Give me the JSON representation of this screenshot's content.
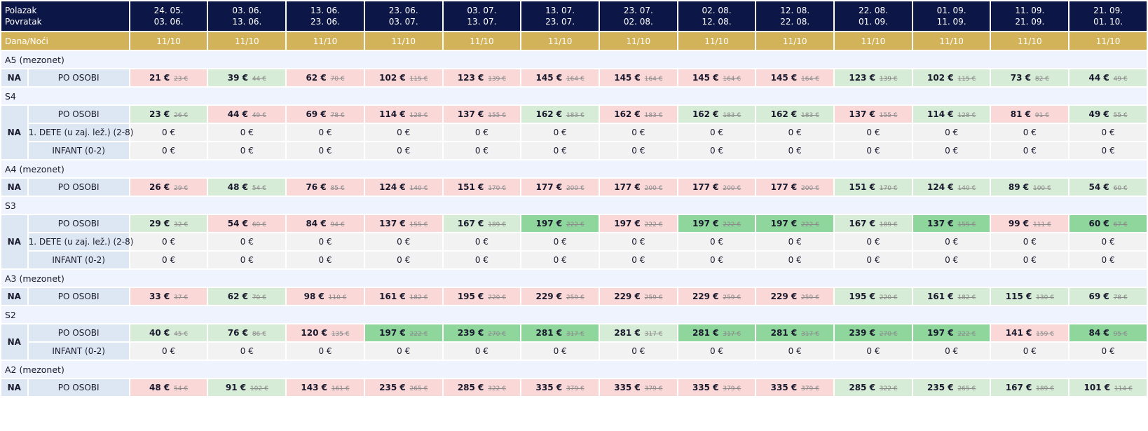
{
  "header": {
    "label_departure": "Polazak",
    "label_return": "Povratak",
    "nights_label": "Dana/Noći"
  },
  "periods": [
    {
      "dep": "24. 05.",
      "ret": "03. 06.",
      "nights": "11/10"
    },
    {
      "dep": "03. 06.",
      "ret": "13. 06.",
      "nights": "11/10"
    },
    {
      "dep": "13. 06.",
      "ret": "23. 06.",
      "nights": "11/10"
    },
    {
      "dep": "23. 06.",
      "ret": "03. 07.",
      "nights": "11/10"
    },
    {
      "dep": "03. 07.",
      "ret": "13. 07.",
      "nights": "11/10"
    },
    {
      "dep": "13. 07.",
      "ret": "23. 07.",
      "nights": "11/10"
    },
    {
      "dep": "23. 07.",
      "ret": "02. 08.",
      "nights": "11/10"
    },
    {
      "dep": "02. 08.",
      "ret": "12. 08.",
      "nights": "11/10"
    },
    {
      "dep": "12. 08.",
      "ret": "22. 08.",
      "nights": "11/10"
    },
    {
      "dep": "22. 08.",
      "ret": "01. 09.",
      "nights": "11/10"
    },
    {
      "dep": "01. 09.",
      "ret": "11. 09.",
      "nights": "11/10"
    },
    {
      "dep": "11. 09.",
      "ret": "21. 09.",
      "nights": "11/10"
    },
    {
      "dep": "21. 09.",
      "ret": "01. 10.",
      "nights": "11/10"
    }
  ],
  "colors": {
    "header_bg": "#0d1747",
    "nights_bg": "#d3b35a",
    "section_bg": "#eef3fd",
    "label_bg": "#dde6f3",
    "price_red": "#fbd8d8",
    "price_light_green": "#d7ecd6",
    "price_dark_green": "#8fd69d",
    "zero_gray": "#f2f2f2"
  },
  "sections": [
    {
      "title": "A5 (mezonet)",
      "board": "NA",
      "rows": [
        {
          "type": "PO OSOBI",
          "cells": [
            {
              "p": "21 €",
              "o": "23 €",
              "c": "red"
            },
            {
              "p": "39 €",
              "o": "44 €",
              "c": "lg"
            },
            {
              "p": "62 €",
              "o": "70 €",
              "c": "red"
            },
            {
              "p": "102 €",
              "o": "115 €",
              "c": "red"
            },
            {
              "p": "123 €",
              "o": "139 €",
              "c": "red"
            },
            {
              "p": "145 €",
              "o": "164 €",
              "c": "red"
            },
            {
              "p": "145 €",
              "o": "164 €",
              "c": "red"
            },
            {
              "p": "145 €",
              "o": "164 €",
              "c": "red"
            },
            {
              "p": "145 €",
              "o": "164 €",
              "c": "red"
            },
            {
              "p": "123 €",
              "o": "139 €",
              "c": "lg"
            },
            {
              "p": "102 €",
              "o": "115 €",
              "c": "lg"
            },
            {
              "p": "73 €",
              "o": "82 €",
              "c": "lg"
            },
            {
              "p": "44 €",
              "o": "49 €",
              "c": "lg"
            }
          ]
        }
      ]
    },
    {
      "title": "S4",
      "board": "NA",
      "rows": [
        {
          "type": "PO OSOBI",
          "cells": [
            {
              "p": "23 €",
              "o": "26 €",
              "c": "lg"
            },
            {
              "p": "44 €",
              "o": "49 €",
              "c": "red"
            },
            {
              "p": "69 €",
              "o": "78 €",
              "c": "red"
            },
            {
              "p": "114 €",
              "o": "128 €",
              "c": "red"
            },
            {
              "p": "137 €",
              "o": "155 €",
              "c": "red"
            },
            {
              "p": "162 €",
              "o": "183 €",
              "c": "lg"
            },
            {
              "p": "162 €",
              "o": "183 €",
              "c": "red"
            },
            {
              "p": "162 €",
              "o": "183 €",
              "c": "lg"
            },
            {
              "p": "162 €",
              "o": "183 €",
              "c": "lg"
            },
            {
              "p": "137 €",
              "o": "155 €",
              "c": "red"
            },
            {
              "p": "114 €",
              "o": "128 €",
              "c": "lg"
            },
            {
              "p": "81 €",
              "o": "91 €",
              "c": "red"
            },
            {
              "p": "49 €",
              "o": "55 €",
              "c": "lg"
            }
          ]
        },
        {
          "type": "1. DETE (u zaj. lež.) (2-8)",
          "zero": "0 €"
        },
        {
          "type": "INFANT (0-2)",
          "zero": "0 €"
        }
      ]
    },
    {
      "title": "A4 (mezonet)",
      "board": "NA",
      "rows": [
        {
          "type": "PO OSOBI",
          "cells": [
            {
              "p": "26 €",
              "o": "29 €",
              "c": "red"
            },
            {
              "p": "48 €",
              "o": "54 €",
              "c": "lg"
            },
            {
              "p": "76 €",
              "o": "85 €",
              "c": "red"
            },
            {
              "p": "124 €",
              "o": "140 €",
              "c": "red"
            },
            {
              "p": "151 €",
              "o": "170 €",
              "c": "red"
            },
            {
              "p": "177 €",
              "o": "200 €",
              "c": "red"
            },
            {
              "p": "177 €",
              "o": "200 €",
              "c": "red"
            },
            {
              "p": "177 €",
              "o": "200 €",
              "c": "red"
            },
            {
              "p": "177 €",
              "o": "200 €",
              "c": "red"
            },
            {
              "p": "151 €",
              "o": "170 €",
              "c": "lg"
            },
            {
              "p": "124 €",
              "o": "140 €",
              "c": "lg"
            },
            {
              "p": "89 €",
              "o": "100 €",
              "c": "lg"
            },
            {
              "p": "54 €",
              "o": "60 €",
              "c": "lg"
            }
          ]
        }
      ]
    },
    {
      "title": "S3",
      "board": "NA",
      "rows": [
        {
          "type": "PO OSOBI",
          "cells": [
            {
              "p": "29 €",
              "o": "32 €",
              "c": "lg"
            },
            {
              "p": "54 €",
              "o": "60 €",
              "c": "red"
            },
            {
              "p": "84 €",
              "o": "94 €",
              "c": "red"
            },
            {
              "p": "137 €",
              "o": "155 €",
              "c": "red"
            },
            {
              "p": "167 €",
              "o": "189 €",
              "c": "lg"
            },
            {
              "p": "197 €",
              "o": "222 €",
              "c": "dg"
            },
            {
              "p": "197 €",
              "o": "222 €",
              "c": "red"
            },
            {
              "p": "197 €",
              "o": "222 €",
              "c": "dg"
            },
            {
              "p": "197 €",
              "o": "222 €",
              "c": "dg"
            },
            {
              "p": "167 €",
              "o": "189 €",
              "c": "lg"
            },
            {
              "p": "137 €",
              "o": "155 €",
              "c": "dg"
            },
            {
              "p": "99 €",
              "o": "111 €",
              "c": "red"
            },
            {
              "p": "60 €",
              "o": "67 €",
              "c": "dg"
            }
          ]
        },
        {
          "type": "1. DETE (u zaj. lež.) (2-8)",
          "zero": "0 €"
        },
        {
          "type": "INFANT (0-2)",
          "zero": "0 €"
        }
      ]
    },
    {
      "title": "A3 (mezonet)",
      "board": "NA",
      "rows": [
        {
          "type": "PO OSOBI",
          "cells": [
            {
              "p": "33 €",
              "o": "37 €",
              "c": "red"
            },
            {
              "p": "62 €",
              "o": "70 €",
              "c": "lg"
            },
            {
              "p": "98 €",
              "o": "110 €",
              "c": "red"
            },
            {
              "p": "161 €",
              "o": "182 €",
              "c": "red"
            },
            {
              "p": "195 €",
              "o": "220 €",
              "c": "red"
            },
            {
              "p": "229 €",
              "o": "259 €",
              "c": "red"
            },
            {
              "p": "229 €",
              "o": "259 €",
              "c": "red"
            },
            {
              "p": "229 €",
              "o": "259 €",
              "c": "red"
            },
            {
              "p": "229 €",
              "o": "259 €",
              "c": "red"
            },
            {
              "p": "195 €",
              "o": "220 €",
              "c": "lg"
            },
            {
              "p": "161 €",
              "o": "182 €",
              "c": "lg"
            },
            {
              "p": "115 €",
              "o": "130 €",
              "c": "lg"
            },
            {
              "p": "69 €",
              "o": "78 €",
              "c": "lg"
            }
          ]
        }
      ]
    },
    {
      "title": "S2",
      "board": "NA",
      "rows": [
        {
          "type": "PO OSOBI",
          "cells": [
            {
              "p": "40 €",
              "o": "45 €",
              "c": "lg"
            },
            {
              "p": "76 €",
              "o": "86 €",
              "c": "lg"
            },
            {
              "p": "120 €",
              "o": "135 €",
              "c": "red"
            },
            {
              "p": "197 €",
              "o": "222 €",
              "c": "dg"
            },
            {
              "p": "239 €",
              "o": "270 €",
              "c": "dg"
            },
            {
              "p": "281 €",
              "o": "317 €",
              "c": "dg"
            },
            {
              "p": "281 €",
              "o": "317 €",
              "c": "lg"
            },
            {
              "p": "281 €",
              "o": "317 €",
              "c": "dg"
            },
            {
              "p": "281 €",
              "o": "317 €",
              "c": "dg"
            },
            {
              "p": "239 €",
              "o": "270 €",
              "c": "dg"
            },
            {
              "p": "197 €",
              "o": "222 €",
              "c": "dg"
            },
            {
              "p": "141 €",
              "o": "159 €",
              "c": "red"
            },
            {
              "p": "84 €",
              "o": "95 €",
              "c": "dg"
            }
          ]
        },
        {
          "type": "INFANT (0-2)",
          "zero": "0 €"
        }
      ]
    },
    {
      "title": "A2 (mezonet)",
      "board": "NA",
      "rows": [
        {
          "type": "PO OSOBI",
          "cells": [
            {
              "p": "48 €",
              "o": "54 €",
              "c": "red"
            },
            {
              "p": "91 €",
              "o": "102 €",
              "c": "lg"
            },
            {
              "p": "143 €",
              "o": "161 €",
              "c": "red"
            },
            {
              "p": "235 €",
              "o": "265 €",
              "c": "red"
            },
            {
              "p": "285 €",
              "o": "322 €",
              "c": "red"
            },
            {
              "p": "335 €",
              "o": "379 €",
              "c": "red"
            },
            {
              "p": "335 €",
              "o": "379 €",
              "c": "red"
            },
            {
              "p": "335 €",
              "o": "379 €",
              "c": "red"
            },
            {
              "p": "335 €",
              "o": "379 €",
              "c": "red"
            },
            {
              "p": "285 €",
              "o": "322 €",
              "c": "lg"
            },
            {
              "p": "235 €",
              "o": "265 €",
              "c": "lg"
            },
            {
              "p": "167 €",
              "o": "189 €",
              "c": "lg"
            },
            {
              "p": "101 €",
              "o": "114 €",
              "c": "lg"
            }
          ]
        }
      ]
    }
  ]
}
